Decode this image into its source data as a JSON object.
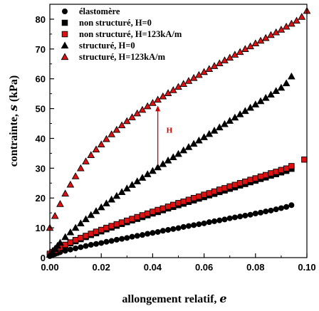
{
  "chart_data": {
    "type": "scatter",
    "xlabel": "allongement relatif, ",
    "xlabel_symbol": "e",
    "ylabel": "contrainte, ",
    "ylabel_symbol": "s",
    "ylabel_unit": " (kPa)",
    "xlim": [
      0,
      0.1
    ],
    "ylim": [
      0,
      85
    ],
    "xticks": [
      "0.00",
      "0.02",
      "0.04",
      "0.06",
      "0.08",
      "0.10"
    ],
    "yticks": [
      "0",
      "10",
      "20",
      "30",
      "40",
      "50",
      "60",
      "70",
      "80"
    ],
    "legend_position": "top-left",
    "annotation": {
      "text": "H",
      "x": 0.042,
      "y_from": 31,
      "y_to": 51,
      "color": "#cc0000"
    },
    "series": [
      {
        "name": "élastomère",
        "marker": "circle",
        "fill": "#000000",
        "stroke": "#000000",
        "x": [
          0.0,
          0.001,
          0.002,
          0.003,
          0.004,
          0.006,
          0.008,
          0.01,
          0.012,
          0.014,
          0.016,
          0.018,
          0.02,
          0.022,
          0.024,
          0.026,
          0.028,
          0.03,
          0.032,
          0.034,
          0.036,
          0.038,
          0.04,
          0.042,
          0.044,
          0.046,
          0.048,
          0.05,
          0.052,
          0.054,
          0.056,
          0.058,
          0.06,
          0.062,
          0.064,
          0.066,
          0.068,
          0.07,
          0.072,
          0.074,
          0.076,
          0.078,
          0.08,
          0.082,
          0.084,
          0.086,
          0.088,
          0.09,
          0.092,
          0.094
        ],
        "y": [
          0.5,
          0.9,
          1.2,
          1.5,
          1.8,
          2.3,
          2.7,
          3.1,
          3.5,
          3.9,
          4.3,
          4.6,
          4.9,
          5.3,
          5.6,
          6.0,
          6.3,
          6.6,
          7.0,
          7.3,
          7.6,
          8.0,
          8.3,
          8.6,
          9.0,
          9.3,
          9.6,
          9.9,
          10.3,
          10.6,
          10.9,
          11.2,
          11.5,
          11.9,
          12.2,
          12.5,
          12.8,
          13.2,
          13.5,
          13.8,
          14.1,
          14.4,
          14.8,
          15.1,
          15.5,
          15.8,
          16.2,
          16.6,
          17.0,
          17.6
        ]
      },
      {
        "name": "non structuré, H=0",
        "marker": "square",
        "fill": "#000000",
        "stroke": "#000000",
        "x": [
          0.0,
          0.001,
          0.002,
          0.003,
          0.004,
          0.006,
          0.008,
          0.01,
          0.012,
          0.014,
          0.016,
          0.018,
          0.02,
          0.022,
          0.024,
          0.026,
          0.028,
          0.03,
          0.032,
          0.034,
          0.036,
          0.038,
          0.04,
          0.042,
          0.044,
          0.046,
          0.048,
          0.05,
          0.052,
          0.054,
          0.056,
          0.058,
          0.06,
          0.062,
          0.064,
          0.066,
          0.068,
          0.07,
          0.072,
          0.074,
          0.076,
          0.078,
          0.08,
          0.082,
          0.084,
          0.086,
          0.088,
          0.09,
          0.092,
          0.094
        ],
        "y": [
          1.0,
          1.6,
          2.1,
          2.6,
          3.1,
          4.0,
          4.8,
          5.5,
          6.2,
          6.9,
          7.6,
          8.2,
          8.8,
          9.5,
          10.1,
          10.7,
          11.3,
          11.9,
          12.5,
          13.0,
          13.6,
          14.2,
          14.8,
          15.3,
          15.9,
          16.5,
          17.0,
          17.6,
          18.1,
          18.7,
          19.2,
          19.8,
          20.3,
          20.9,
          21.4,
          22.0,
          22.5,
          23.1,
          23.6,
          24.2,
          24.7,
          25.3,
          25.8,
          26.4,
          26.9,
          27.5,
          28.0,
          28.6,
          29.1,
          29.8
        ]
      },
      {
        "name": "non structuré, H=123kA/m",
        "marker": "square",
        "fill": "#dd1111",
        "stroke": "#000000",
        "x": [
          0.0,
          0.001,
          0.002,
          0.003,
          0.004,
          0.006,
          0.008,
          0.01,
          0.012,
          0.014,
          0.016,
          0.018,
          0.02,
          0.022,
          0.024,
          0.026,
          0.028,
          0.03,
          0.032,
          0.034,
          0.036,
          0.038,
          0.04,
          0.042,
          0.044,
          0.046,
          0.048,
          0.05,
          0.052,
          0.054,
          0.056,
          0.058,
          0.06,
          0.062,
          0.064,
          0.066,
          0.068,
          0.07,
          0.072,
          0.074,
          0.076,
          0.078,
          0.08,
          0.082,
          0.084,
          0.086,
          0.088,
          0.09,
          0.092,
          0.094,
          0.099
        ],
        "y": [
          1.3,
          1.9,
          2.4,
          2.9,
          3.4,
          4.3,
          5.1,
          5.9,
          6.6,
          7.3,
          8.0,
          8.7,
          9.3,
          10.0,
          10.6,
          11.2,
          11.8,
          12.4,
          13.0,
          13.6,
          14.2,
          14.8,
          15.4,
          16.0,
          16.5,
          17.1,
          17.7,
          18.3,
          18.8,
          19.4,
          20.0,
          20.5,
          21.1,
          21.6,
          22.2,
          22.8,
          23.3,
          23.9,
          24.4,
          25.0,
          25.5,
          26.1,
          26.6,
          27.2,
          27.7,
          28.3,
          28.8,
          29.4,
          29.9,
          30.7,
          32.9
        ]
      },
      {
        "name": "structuré, H=0",
        "marker": "triangle",
        "fill": "#000000",
        "stroke": "#000000",
        "x": [
          0.0,
          0.001,
          0.002,
          0.003,
          0.004,
          0.006,
          0.008,
          0.01,
          0.012,
          0.014,
          0.016,
          0.018,
          0.02,
          0.022,
          0.024,
          0.026,
          0.028,
          0.03,
          0.032,
          0.034,
          0.036,
          0.038,
          0.04,
          0.042,
          0.044,
          0.046,
          0.048,
          0.05,
          0.052,
          0.054,
          0.056,
          0.058,
          0.06,
          0.062,
          0.064,
          0.066,
          0.068,
          0.07,
          0.072,
          0.074,
          0.076,
          0.078,
          0.08,
          0.082,
          0.084,
          0.086,
          0.088,
          0.09,
          0.092,
          0.094
        ],
        "y": [
          1.0,
          2.0,
          3.0,
          4.0,
          5.0,
          6.9,
          8.5,
          10.0,
          11.5,
          12.9,
          14.3,
          15.6,
          16.9,
          18.2,
          19.5,
          20.7,
          22.0,
          23.2,
          24.4,
          25.6,
          26.8,
          28.0,
          29.1,
          30.3,
          31.4,
          32.6,
          33.7,
          34.8,
          36.0,
          37.1,
          38.2,
          39.3,
          40.4,
          41.5,
          42.6,
          43.7,
          44.8,
          45.9,
          47.0,
          48.1,
          49.2,
          50.3,
          51.4,
          52.5,
          53.6,
          54.7,
          55.9,
          57.0,
          58.5,
          60.8
        ]
      },
      {
        "name": "structuré, H=123kA/m",
        "marker": "triangle",
        "fill": "#dd1111",
        "stroke": "#000000",
        "x": [
          0.0,
          0.002,
          0.004,
          0.006,
          0.008,
          0.01,
          0.012,
          0.014,
          0.016,
          0.018,
          0.02,
          0.022,
          0.024,
          0.026,
          0.028,
          0.03,
          0.032,
          0.034,
          0.036,
          0.038,
          0.04,
          0.042,
          0.044,
          0.046,
          0.048,
          0.05,
          0.052,
          0.054,
          0.056,
          0.058,
          0.06,
          0.062,
          0.064,
          0.066,
          0.068,
          0.07,
          0.072,
          0.074,
          0.076,
          0.078,
          0.08,
          0.082,
          0.084,
          0.086,
          0.088,
          0.09,
          0.092,
          0.094,
          0.096,
          0.098,
          0.1
        ],
        "y": [
          10.0,
          14.0,
          18.0,
          21.5,
          24.5,
          27.3,
          30.0,
          32.3,
          34.4,
          36.3,
          38.0,
          39.8,
          41.4,
          42.9,
          44.4,
          45.8,
          47.1,
          48.4,
          49.6,
          50.8,
          51.9,
          53.0,
          54.1,
          55.2,
          56.2,
          57.3,
          58.3,
          59.3,
          60.3,
          61.3,
          62.3,
          63.3,
          64.3,
          65.2,
          66.2,
          67.1,
          68.1,
          69.0,
          70.0,
          70.9,
          71.9,
          72.8,
          73.7,
          74.7,
          75.6,
          76.5,
          77.5,
          78.5,
          79.5,
          80.8,
          82.8
        ]
      }
    ]
  }
}
